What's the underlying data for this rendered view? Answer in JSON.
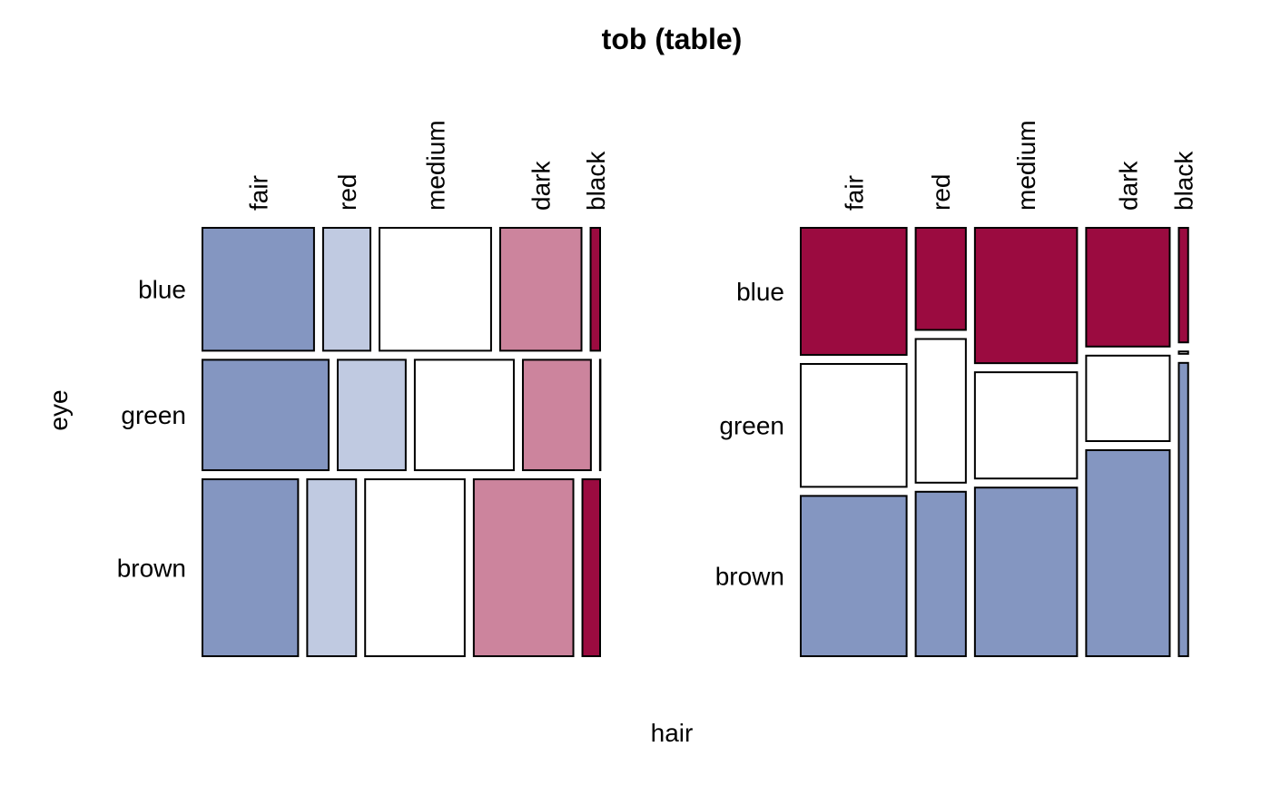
{
  "title": "tob (table)",
  "xlabel": "hair",
  "ylabel": "eye",
  "chart_data": [
    {
      "type": "mosaic",
      "panel": "left",
      "row_variable": "eye",
      "column_variable": "hair",
      "rows": [
        "blue",
        "green",
        "brown"
      ],
      "columns": [
        "fair",
        "red",
        "medium",
        "dark",
        "black"
      ],
      "row_fractions": [
        0.3,
        0.27,
        0.43
      ],
      "cell_fractions_within_row": [
        [
          0.3,
          0.13,
          0.3,
          0.22,
          0.03
        ],
        [
          0.33,
          0.18,
          0.26,
          0.18,
          0.005
        ],
        [
          0.25,
          0.13,
          0.26,
          0.26,
          0.05
        ]
      ],
      "column_colors": [
        "#8496C1",
        "#C0CAE1",
        "#FFFFFF",
        "#CC849D",
        "#9B0B40"
      ]
    },
    {
      "type": "mosaic",
      "panel": "right",
      "row_variable": "eye",
      "column_variable": "hair",
      "rows": [
        "blue",
        "green",
        "brown"
      ],
      "columns": [
        "fair",
        "red",
        "medium",
        "dark",
        "black"
      ],
      "column_fractions": [
        0.29,
        0.14,
        0.28,
        0.23,
        0.03
      ],
      "cell_fractions_within_column": [
        [
          0.31,
          0.25,
          0.33,
          0.29,
          0.28
        ],
        [
          0.3,
          0.35,
          0.26,
          0.21,
          0.01
        ],
        [
          0.39,
          0.4,
          0.41,
          0.5,
          0.71
        ]
      ],
      "row_colors": [
        "#9B0B40",
        "#FFFFFF",
        "#8496C1"
      ]
    }
  ]
}
